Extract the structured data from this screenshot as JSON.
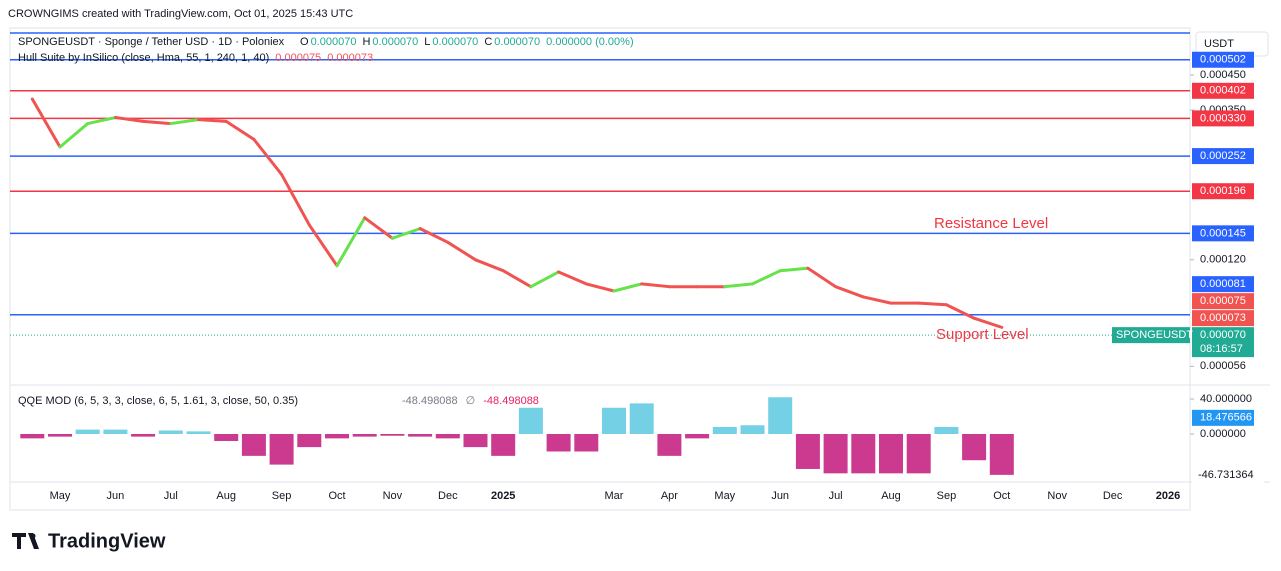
{
  "header": {
    "credit": "CROWNGIMS created with TradingView.com, Oct 01, 2025 15:43 UTC",
    "symbol": "SPONGEUSDT · Sponge / Tether USD · 1D · Poloniex",
    "ohlc": [
      {
        "key": "O",
        "value": "0.000070"
      },
      {
        "key": "H",
        "value": "0.000070"
      },
      {
        "key": "L",
        "value": "0.000070"
      },
      {
        "key": "C",
        "value": "0.000070"
      }
    ],
    "change": "0.000000 (0.00%)",
    "currency": "USDT",
    "brand": "TradingView"
  },
  "chart_data": [
    {
      "type": "line",
      "title": "Hull Suite by InSilico (close, Hma, 55, 1, 240, 1, 40)",
      "log_scale": true,
      "categories": [
        null,
        "May",
        null,
        "Jun",
        null,
        "Jul",
        null,
        "Aug",
        null,
        "Sep",
        null,
        "Oct",
        null,
        "Nov",
        null,
        "Dec",
        null,
        "2025",
        null,
        null,
        null,
        "Mar",
        null,
        "Apr",
        null,
        "May",
        null,
        "Jun",
        null,
        "Jul",
        null,
        "Aug",
        null,
        "Sep",
        null,
        "Oct",
        null,
        "Nov",
        null,
        "Dec",
        null,
        "2026"
      ],
      "series": [
        {
          "name": "Hull Suite by InSilico (close, Hma, 55, 1, 240, 1, 40)",
          "color": "#f05350",
          "up_color": "#66e24a",
          "values": [
            0.000379,
            0.000269,
            0.000318,
            0.000332,
            0.000323,
            0.000318,
            0.000327,
            0.000323,
            0.000284,
            0.000221,
            0.000154,
            0.000115,
            0.000162,
            0.00014,
            0.00015,
            0.000136,
            0.00012,
            0.000111,
            9.9e-05,
            0.00011,
            0.000101,
            9.6e-05,
            0.000101,
            9.9e-05,
            9.9e-05,
            9.9e-05,
            0.000101,
            0.000111,
            0.000113,
            9.9e-05,
            9.2e-05,
            8.8e-05,
            8.8e-05,
            8.7e-05,
            7.9e-05,
            7.4e-05,
            null,
            null,
            null,
            null,
            null,
            null
          ]
        }
      ],
      "hma_labels": [
        {
          "value": 7.5e-05,
          "label": "0.000075"
        },
        {
          "value": 7.3e-05,
          "label": "0.000073"
        }
      ],
      "last_price": {
        "value": 7e-05,
        "label": "0.000070",
        "name": "SPONGEUSDT",
        "countdown": "08:16:57",
        "color": "#22ab94"
      },
      "levels": [
        {
          "value": 0.000608,
          "color": "#2962ff"
        },
        {
          "value": 0.000502,
          "label": "0.000502",
          "color": "#2962ff"
        },
        {
          "value": 0.000402,
          "label": "0.000402",
          "color": "#f23645"
        },
        {
          "value": 0.00033,
          "label": "0.000330",
          "color": "#f23645"
        },
        {
          "value": 0.000252,
          "label": "0.000252",
          "color": "#2962ff"
        },
        {
          "value": 0.000196,
          "label": "0.000196",
          "color": "#f23645"
        },
        {
          "value": 0.000145,
          "label": "0.000145",
          "color": "#2962ff"
        },
        {
          "value": 8.1e-05,
          "label": "0.000081",
          "color": "#2962ff"
        }
      ],
      "annotations": [
        {
          "text": "Resistance Level",
          "color": "#f23645"
        },
        {
          "text": "Support Level",
          "color": "#f23645"
        }
      ],
      "ylim": [
        4.9e-05,
        0.00063
      ],
      "yticks": [
        {
          "value": 0.00045,
          "label": "0.000450"
        },
        {
          "value": 0.00035,
          "label": "0.000350"
        },
        {
          "value": 0.00012,
          "label": "0.000120"
        },
        {
          "value": 5.6e-05,
          "label": "0.000056"
        }
      ]
    },
    {
      "type": "bar",
      "title": "QQE MOD (6, 5, 3, 3, close, 6, 5, 1.61, 3, close, 50, 0.35)",
      "readout": [
        {
          "text": "-48.498088",
          "color": "#787b86"
        },
        {
          "text": "∅",
          "color": "#787b86"
        },
        {
          "text": "-48.498088",
          "color": "#e91e63"
        }
      ],
      "pos_color": "#5cc8e0",
      "neg_color": "#c2187a",
      "values": [
        -5,
        -3,
        5,
        5,
        -3,
        4,
        3,
        -8,
        -25,
        -35,
        -15,
        -5,
        -3,
        -2,
        -3,
        -5,
        -15,
        -25,
        30,
        -20,
        -20,
        30,
        35,
        -25,
        -5,
        8,
        10,
        42,
        -40,
        -45,
        -45,
        -45,
        -45,
        8,
        -30,
        -46.731364,
        null,
        null,
        null,
        null,
        null,
        null
      ],
      "line_value": {
        "value": 18.476566,
        "label": "18.476566",
        "color": "#2196f3"
      },
      "last_label": {
        "value": -46.731364,
        "label": "-46.731364"
      },
      "ylim": [
        -54.9,
        52.6
      ],
      "yticks": [
        {
          "value": 40,
          "label": "40.000000"
        },
        {
          "value": 0,
          "label": "0.000000"
        }
      ]
    }
  ]
}
